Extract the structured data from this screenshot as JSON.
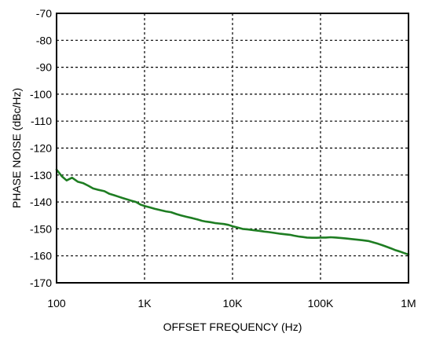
{
  "chart_data": {
    "type": "line",
    "title": "",
    "xlabel": "OFFSET FREQUENCY (Hz)",
    "ylabel": "PHASE NOISE (dBc/Hz)",
    "x_scale": "log",
    "xlim": [
      100,
      1000000
    ],
    "ylim": [
      -170,
      -70
    ],
    "grid": true,
    "x_ticks": [
      {
        "value": 100,
        "label": "100"
      },
      {
        "value": 1000,
        "label": "1K"
      },
      {
        "value": 10000,
        "label": "10K"
      },
      {
        "value": 100000,
        "label": "100K"
      },
      {
        "value": 1000000,
        "label": "1M"
      }
    ],
    "y_ticks": [
      {
        "value": -70,
        "label": "-70"
      },
      {
        "value": -80,
        "label": "-80"
      },
      {
        "value": -90,
        "label": "-90"
      },
      {
        "value": -100,
        "label": "-100"
      },
      {
        "value": -110,
        "label": "-110"
      },
      {
        "value": -120,
        "label": "-120"
      },
      {
        "value": -130,
        "label": "-130"
      },
      {
        "value": -140,
        "label": "-140"
      },
      {
        "value": -150,
        "label": "-150"
      },
      {
        "value": -160,
        "label": "-160"
      },
      {
        "value": -170,
        "label": "-170"
      }
    ],
    "series": [
      {
        "color": "#1e7d22",
        "x": [
          100,
          115,
          130,
          150,
          175,
          200,
          230,
          260,
          300,
          350,
          400,
          450,
          500,
          560,
          630,
          700,
          800,
          900,
          1000,
          1150,
          1300,
          1500,
          1750,
          2000,
          2300,
          2600,
          3000,
          3500,
          4000,
          4500,
          5000,
          5600,
          6300,
          7000,
          8000,
          9000,
          10000,
          11500,
          13000,
          15000,
          17500,
          20000,
          23000,
          26000,
          30000,
          35000,
          40000,
          45000,
          50000,
          56000,
          63000,
          70000,
          80000,
          90000,
          100000,
          115000,
          130000,
          150000,
          175000,
          200000,
          230000,
          260000,
          300000,
          350000,
          400000,
          450000,
          500000,
          560000,
          630000,
          700000,
          800000,
          900000,
          1000000
        ],
        "y": [
          -128,
          -130.5,
          -132,
          -131,
          -132.5,
          -133,
          -134,
          -135,
          -135.5,
          -136,
          -137,
          -137.5,
          -138,
          -138.5,
          -139,
          -139.5,
          -140,
          -141,
          -141.5,
          -142,
          -142.5,
          -143,
          -143.5,
          -143.8,
          -144.5,
          -145,
          -145.5,
          -146,
          -146.5,
          -147,
          -147.3,
          -147.5,
          -147.8,
          -148,
          -148.2,
          -148.5,
          -149,
          -149.5,
          -150,
          -150.2,
          -150.5,
          -150.7,
          -151,
          -151.2,
          -151.5,
          -151.8,
          -152,
          -152.2,
          -152.5,
          -152.8,
          -153,
          -153.2,
          -153.3,
          -153.3,
          -153.2,
          -153.2,
          -153.1,
          -153.2,
          -153.4,
          -153.6,
          -153.8,
          -154,
          -154.2,
          -154.5,
          -155,
          -155.5,
          -156,
          -156.6,
          -157.2,
          -157.8,
          -158.4,
          -159,
          -159.5
        ]
      }
    ]
  }
}
